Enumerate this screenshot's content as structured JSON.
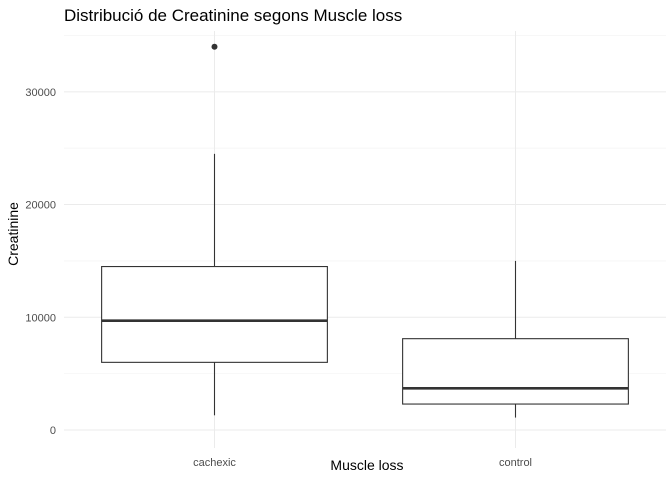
{
  "chart_data": {
    "type": "boxplot",
    "title": "Distribució de Creatinine segons Muscle loss",
    "xlabel": "Muscle loss",
    "ylabel": "Creatinine",
    "categories": [
      "cachexic",
      "control"
    ],
    "boxes": [
      {
        "category": "cachexic",
        "min": 1300,
        "q1": 6000,
        "median": 9700,
        "q3": 14500,
        "max": 24500,
        "outliers": [
          34000
        ]
      },
      {
        "category": "control",
        "min": 1100,
        "q1": 2300,
        "median": 3700,
        "q3": 8100,
        "max": 15000,
        "outliers": []
      }
    ],
    "ylim": [
      -1600,
      35400
    ],
    "y_ticks": [
      0,
      10000,
      20000,
      30000
    ],
    "y_tick_labels": [
      "0",
      "10000",
      "20000",
      "30000"
    ],
    "y_minor_ticks": [
      5000,
      15000,
      25000,
      35000
    ],
    "grid": true,
    "legend": "none",
    "colors": {
      "box_stroke": "#333333",
      "box_fill": "#ffffff",
      "grid_major": "#ebebeb",
      "grid_minor": "#f5f5f5",
      "text_axis": "#4d4d4d"
    }
  }
}
